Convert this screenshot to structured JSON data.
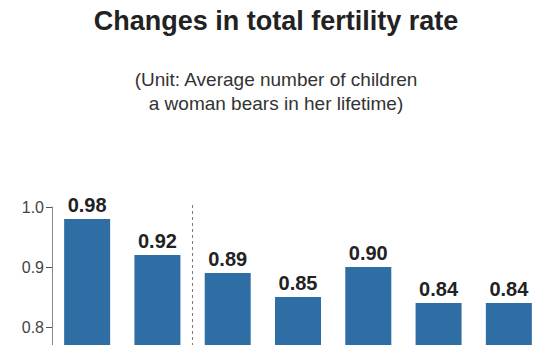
{
  "chart_data": {
    "type": "bar",
    "title": "Changes in total fertility rate",
    "subtitle": "(Unit: Average number of children\na woman bears in her lifetime)",
    "categories": [
      null,
      null,
      null,
      null,
      null,
      null,
      null
    ],
    "values": [
      0.98,
      0.92,
      0.89,
      0.85,
      0.9,
      0.84,
      0.84
    ],
    "value_labels": [
      "0.98",
      "0.92",
      "0.89",
      "0.85",
      "0.90",
      "0.84",
      "0.84"
    ],
    "color": "#2f6ea5",
    "ylim": [
      0.77,
      1.0
    ],
    "yticks": [
      {
        "value": 1,
        "label": "1.0"
      },
      0.9,
      0.8
    ],
    "grid": false,
    "data_labels": true,
    "tick_labels": "y"
  }
}
